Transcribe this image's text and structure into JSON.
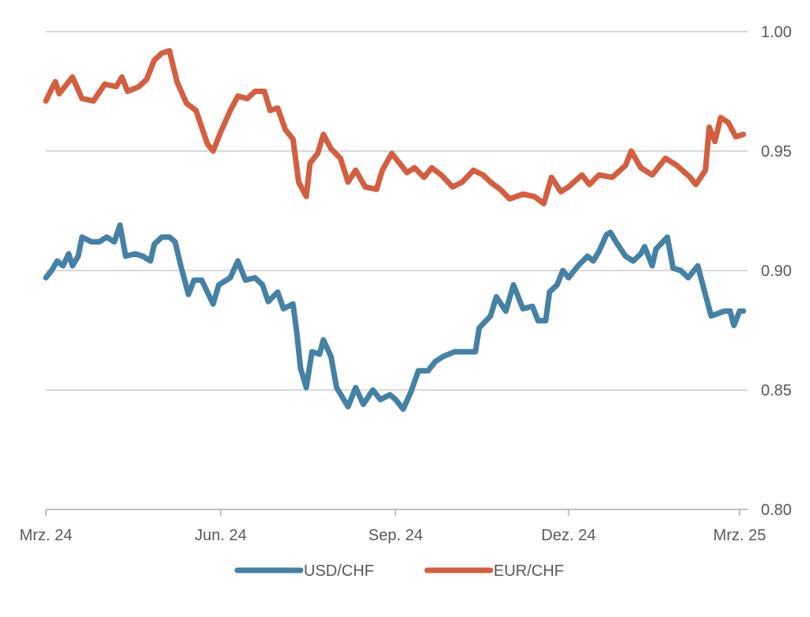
{
  "chart_data": {
    "type": "line",
    "title": "",
    "xlabel": "",
    "ylabel": "",
    "ylim": [
      0.8,
      1.0
    ],
    "xlim": [
      "2024-03-01",
      "2025-03-03"
    ],
    "grid": true,
    "y_axis_position": "right",
    "legend_position": "bottom",
    "y_ticks": [
      "0.80",
      "0.85",
      "0.90",
      "0.95",
      "1.00"
    ],
    "x_ticks": [
      {
        "date": "2024-03-01",
        "label": "Mrz. 24"
      },
      {
        "date": "2024-06-01",
        "label": "Jun. 24"
      },
      {
        "date": "2024-09-01",
        "label": "Sep. 24"
      },
      {
        "date": "2024-12-01",
        "label": "Dez. 24"
      },
      {
        "date": "2025-03-01",
        "label": "Mrz. 25"
      }
    ],
    "series": [
      {
        "name": "USD/CHF",
        "color": "#4481a5",
        "points": [
          [
            "2024-03-01",
            0.897
          ],
          [
            "2024-03-04",
            0.9
          ],
          [
            "2024-03-07",
            0.904
          ],
          [
            "2024-03-10",
            0.902
          ],
          [
            "2024-03-13",
            0.907
          ],
          [
            "2024-03-15",
            0.902
          ],
          [
            "2024-03-18",
            0.906
          ],
          [
            "2024-03-20",
            0.914
          ],
          [
            "2024-03-25",
            0.912
          ],
          [
            "2024-03-29",
            0.912
          ],
          [
            "2024-04-02",
            0.914
          ],
          [
            "2024-04-06",
            0.912
          ],
          [
            "2024-04-09",
            0.919
          ],
          [
            "2024-04-12",
            0.906
          ],
          [
            "2024-04-17",
            0.907
          ],
          [
            "2024-04-21",
            0.906
          ],
          [
            "2024-04-25",
            0.904
          ],
          [
            "2024-04-27",
            0.911
          ],
          [
            "2024-05-01",
            0.914
          ],
          [
            "2024-05-05",
            0.914
          ],
          [
            "2024-05-08",
            0.912
          ],
          [
            "2024-05-11",
            0.902
          ],
          [
            "2024-05-15",
            0.89
          ],
          [
            "2024-05-18",
            0.896
          ],
          [
            "2024-05-22",
            0.896
          ],
          [
            "2024-05-25",
            0.891
          ],
          [
            "2024-05-28",
            0.886
          ],
          [
            "2024-05-31",
            0.894
          ],
          [
            "2024-06-06",
            0.897
          ],
          [
            "2024-06-10",
            0.904
          ],
          [
            "2024-06-14",
            0.896
          ],
          [
            "2024-06-19",
            0.897
          ],
          [
            "2024-06-23",
            0.894
          ],
          [
            "2024-06-26",
            0.887
          ],
          [
            "2024-07-01",
            0.891
          ],
          [
            "2024-07-04",
            0.884
          ],
          [
            "2024-07-09",
            0.886
          ],
          [
            "2024-07-11",
            0.874
          ],
          [
            "2024-07-13",
            0.859
          ],
          [
            "2024-07-16",
            0.851
          ],
          [
            "2024-07-19",
            0.866
          ],
          [
            "2024-07-23",
            0.865
          ],
          [
            "2024-07-25",
            0.871
          ],
          [
            "2024-07-29",
            0.864
          ],
          [
            "2024-08-01",
            0.851
          ],
          [
            "2024-08-07",
            0.843
          ],
          [
            "2024-08-11",
            0.851
          ],
          [
            "2024-08-15",
            0.844
          ],
          [
            "2024-08-20",
            0.85
          ],
          [
            "2024-08-24",
            0.846
          ],
          [
            "2024-08-29",
            0.848
          ],
          [
            "2024-09-01",
            0.846
          ],
          [
            "2024-09-05",
            0.842
          ],
          [
            "2024-09-09",
            0.849
          ],
          [
            "2024-09-13",
            0.858
          ],
          [
            "2024-09-18",
            0.858
          ],
          [
            "2024-09-22",
            0.862
          ],
          [
            "2024-09-26",
            0.864
          ],
          [
            "2024-10-02",
            0.866
          ],
          [
            "2024-10-08",
            0.866
          ],
          [
            "2024-10-13",
            0.866
          ],
          [
            "2024-10-15",
            0.876
          ],
          [
            "2024-10-21",
            0.881
          ],
          [
            "2024-10-24",
            0.889
          ],
          [
            "2024-10-29",
            0.883
          ],
          [
            "2024-11-02",
            0.894
          ],
          [
            "2024-11-07",
            0.884
          ],
          [
            "2024-11-12",
            0.885
          ],
          [
            "2024-11-15",
            0.879
          ],
          [
            "2024-11-19",
            0.879
          ],
          [
            "2024-11-21",
            0.891
          ],
          [
            "2024-11-25",
            0.894
          ],
          [
            "2024-11-28",
            0.9
          ],
          [
            "2024-12-01",
            0.897
          ],
          [
            "2024-12-06",
            0.902
          ],
          [
            "2024-12-11",
            0.906
          ],
          [
            "2024-12-14",
            0.904
          ],
          [
            "2024-12-17",
            0.908
          ],
          [
            "2024-12-21",
            0.915
          ],
          [
            "2024-12-23",
            0.916
          ],
          [
            "2024-12-26",
            0.912
          ],
          [
            "2024-12-31",
            0.906
          ],
          [
            "2025-01-04",
            0.904
          ],
          [
            "2025-01-08",
            0.907
          ],
          [
            "2025-01-10",
            0.91
          ],
          [
            "2025-01-14",
            0.902
          ],
          [
            "2025-01-16",
            0.909
          ],
          [
            "2025-01-22",
            0.914
          ],
          [
            "2025-01-25",
            0.901
          ],
          [
            "2025-01-29",
            0.9
          ],
          [
            "2025-02-02",
            0.897
          ],
          [
            "2025-02-07",
            0.902
          ],
          [
            "2025-02-09",
            0.896
          ],
          [
            "2025-02-14",
            0.881
          ],
          [
            "2025-02-21",
            0.883
          ],
          [
            "2025-02-24",
            0.883
          ],
          [
            "2025-02-26",
            0.877
          ],
          [
            "2025-03-01",
            0.883
          ],
          [
            "2025-03-03",
            0.883
          ]
        ]
      },
      {
        "name": "EUR/CHF",
        "color": "#d35e40",
        "points": [
          [
            "2024-03-01",
            0.971
          ],
          [
            "2024-03-04",
            0.976
          ],
          [
            "2024-03-06",
            0.979
          ],
          [
            "2024-03-08",
            0.974
          ],
          [
            "2024-03-11",
            0.977
          ],
          [
            "2024-03-15",
            0.981
          ],
          [
            "2024-03-20",
            0.972
          ],
          [
            "2024-03-26",
            0.971
          ],
          [
            "2024-04-01",
            0.978
          ],
          [
            "2024-04-07",
            0.977
          ],
          [
            "2024-04-10",
            0.981
          ],
          [
            "2024-04-13",
            0.975
          ],
          [
            "2024-04-19",
            0.977
          ],
          [
            "2024-04-23",
            0.98
          ],
          [
            "2024-04-27",
            0.988
          ],
          [
            "2024-05-01",
            0.991
          ],
          [
            "2024-05-05",
            0.992
          ],
          [
            "2024-05-09",
            0.979
          ],
          [
            "2024-05-14",
            0.97
          ],
          [
            "2024-05-19",
            0.967
          ],
          [
            "2024-05-25",
            0.953
          ],
          [
            "2024-05-28",
            0.95
          ],
          [
            "2024-06-01",
            0.958
          ],
          [
            "2024-06-06",
            0.967
          ],
          [
            "2024-06-10",
            0.973
          ],
          [
            "2024-06-15",
            0.972
          ],
          [
            "2024-06-19",
            0.975
          ],
          [
            "2024-06-24",
            0.975
          ],
          [
            "2024-06-27",
            0.967
          ],
          [
            "2024-07-01",
            0.968
          ],
          [
            "2024-07-05",
            0.959
          ],
          [
            "2024-07-09",
            0.955
          ],
          [
            "2024-07-12",
            0.937
          ],
          [
            "2024-07-16",
            0.931
          ],
          [
            "2024-07-18",
            0.945
          ],
          [
            "2024-07-22",
            0.949
          ],
          [
            "2024-07-25",
            0.957
          ],
          [
            "2024-07-29",
            0.951
          ],
          [
            "2024-08-03",
            0.947
          ],
          [
            "2024-08-07",
            0.937
          ],
          [
            "2024-08-11",
            0.942
          ],
          [
            "2024-08-16",
            0.935
          ],
          [
            "2024-08-22",
            0.934
          ],
          [
            "2024-08-25",
            0.942
          ],
          [
            "2024-08-30",
            0.949
          ],
          [
            "2024-09-03",
            0.945
          ],
          [
            "2024-09-07",
            0.941
          ],
          [
            "2024-09-11",
            0.943
          ],
          [
            "2024-09-16",
            0.939
          ],
          [
            "2024-09-20",
            0.943
          ],
          [
            "2024-09-25",
            0.94
          ],
          [
            "2024-10-01",
            0.935
          ],
          [
            "2024-10-06",
            0.937
          ],
          [
            "2024-10-12",
            0.942
          ],
          [
            "2024-10-17",
            0.94
          ],
          [
            "2024-10-21",
            0.937
          ],
          [
            "2024-10-26",
            0.934
          ],
          [
            "2024-10-31",
            0.93
          ],
          [
            "2024-11-07",
            0.932
          ],
          [
            "2024-11-13",
            0.931
          ],
          [
            "2024-11-18",
            0.928
          ],
          [
            "2024-11-22",
            0.939
          ],
          [
            "2024-11-27",
            0.933
          ],
          [
            "2024-12-01",
            0.935
          ],
          [
            "2024-12-08",
            0.94
          ],
          [
            "2024-12-12",
            0.936
          ],
          [
            "2024-12-17",
            0.94
          ],
          [
            "2024-12-24",
            0.939
          ],
          [
            "2024-12-31",
            0.944
          ],
          [
            "2025-01-03",
            0.95
          ],
          [
            "2025-01-08",
            0.943
          ],
          [
            "2025-01-14",
            0.94
          ],
          [
            "2025-01-21",
            0.947
          ],
          [
            "2025-01-27",
            0.944
          ],
          [
            "2025-02-03",
            0.939
          ],
          [
            "2025-02-06",
            0.936
          ],
          [
            "2025-02-11",
            0.942
          ],
          [
            "2025-02-13",
            0.96
          ],
          [
            "2025-02-16",
            0.954
          ],
          [
            "2025-02-19",
            0.964
          ],
          [
            "2025-02-23",
            0.962
          ],
          [
            "2025-02-27",
            0.956
          ],
          [
            "2025-03-03",
            0.957
          ]
        ]
      }
    ]
  }
}
